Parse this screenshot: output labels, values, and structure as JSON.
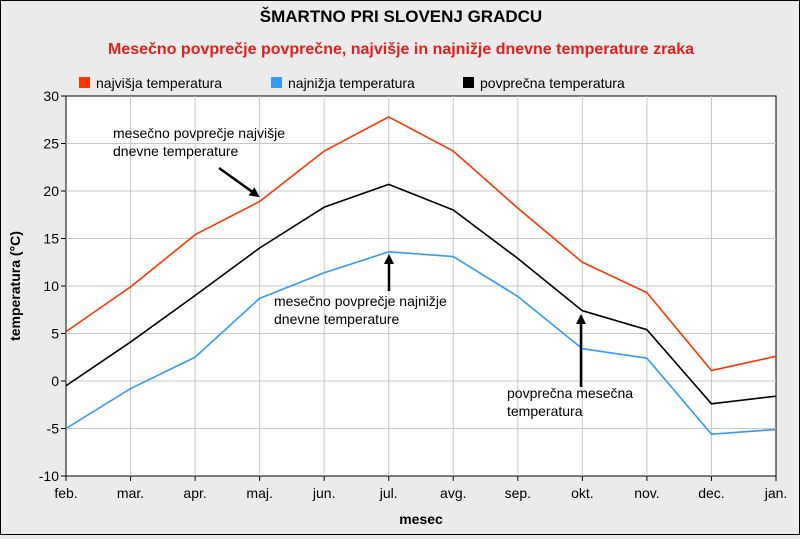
{
  "chart_data": {
    "type": "line",
    "title": "ŠMARTNO PRI SLOVENJ GRADCU",
    "subtitle": "Mesečno povprečje povprečne, najvišje in najnižje dnevne temperature zraka",
    "xlabel": "mesec",
    "ylabel": "temperatura (°C)",
    "ylim": [
      -10,
      30
    ],
    "yticks": [
      -10,
      -5,
      0,
      5,
      10,
      15,
      20,
      25,
      30
    ],
    "grid": true,
    "legend": "top-left",
    "categories": [
      "feb.",
      "mar.",
      "apr.",
      "maj.",
      "jun.",
      "jul.",
      "avg.",
      "sep.",
      "okt.",
      "nov.",
      "dec.",
      "jan."
    ],
    "series": [
      {
        "name": "najvišja temperatura",
        "color": "#ff3300",
        "values": [
          5.2,
          9.9,
          15.4,
          18.9,
          24.2,
          27.8,
          24.2,
          18.2,
          12.5,
          9.3,
          1.1,
          2.6
        ]
      },
      {
        "name": "najnižja temperatura",
        "color": "#3399ff",
        "values": [
          -5.0,
          -0.8,
          2.5,
          8.7,
          11.4,
          13.6,
          13.1,
          8.9,
          3.4,
          2.4,
          -5.6,
          -5.1
        ]
      },
      {
        "name": "povprečna temperatura",
        "color": "#000000",
        "values": [
          -0.5,
          4.1,
          9.0,
          14.0,
          18.3,
          20.7,
          18.0,
          12.9,
          7.4,
          5.4,
          -2.4,
          -1.6
        ]
      }
    ],
    "annotations": [
      {
        "lines": [
          "mesečno povprečje najvišje",
          "dnevne temperature"
        ],
        "target_x": "maj.",
        "target_y": 18.9
      },
      {
        "lines": [
          "mesečno povprečje najnižje",
          "dnevne temperature"
        ],
        "target_x": "jul.",
        "target_y": 13.6
      },
      {
        "lines": [
          "povprečna mesečna",
          "temperatura"
        ],
        "target_x": "okt.",
        "target_y": 7.4
      }
    ]
  }
}
